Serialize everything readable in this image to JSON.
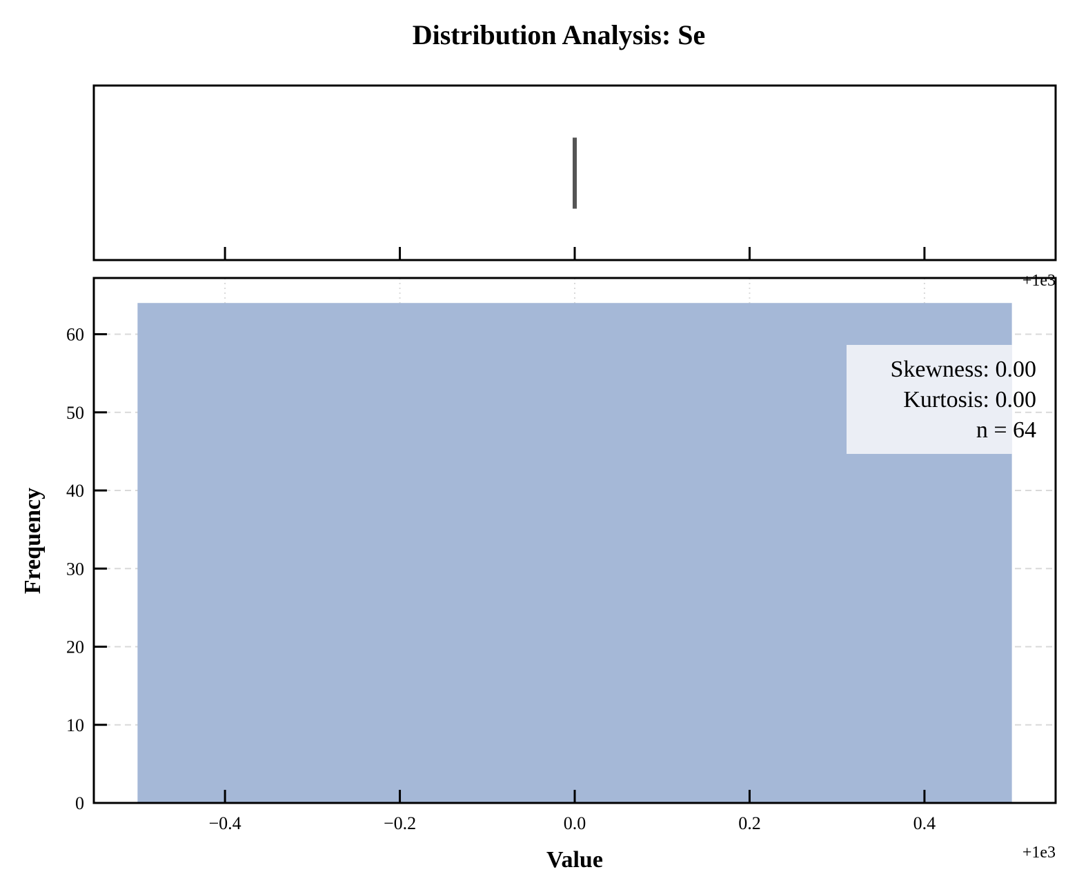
{
  "chart_data": {
    "title": "Distribution Analysis: Se",
    "type": "bar",
    "histogram": {
      "bins": [
        {
          "x0": 999.5,
          "x1": 1000.5,
          "count": 64
        }
      ],
      "color": "#a5b8d7"
    },
    "boxplot": {
      "min": 1000.0,
      "q1": 1000.0,
      "median": 1000.0,
      "q3": 1000.0,
      "max": 1000.0,
      "color": "#555555"
    },
    "xlabel": "Value",
    "ylabel": "Frequency",
    "xlim": [
      999.45,
      1000.55
    ],
    "ylim": [
      0,
      67.2
    ],
    "xticks": [
      999.6,
      999.8,
      1000.0,
      1000.2,
      1000.4
    ],
    "xtick_labels": [
      "−0.4",
      "−0.2",
      "0.0",
      "0.2",
      "0.4"
    ],
    "x_offset_label": "+1e3",
    "yticks": [
      0,
      10,
      20,
      30,
      40,
      50,
      60
    ],
    "ytick_labels": [
      "0",
      "10",
      "20",
      "30",
      "40",
      "50",
      "60"
    ],
    "grid": true,
    "stats_box": {
      "lines": [
        "Skewness: 0.00",
        "Kurtosis: 0.00",
        "n = 64"
      ],
      "placement": "top-right"
    }
  }
}
